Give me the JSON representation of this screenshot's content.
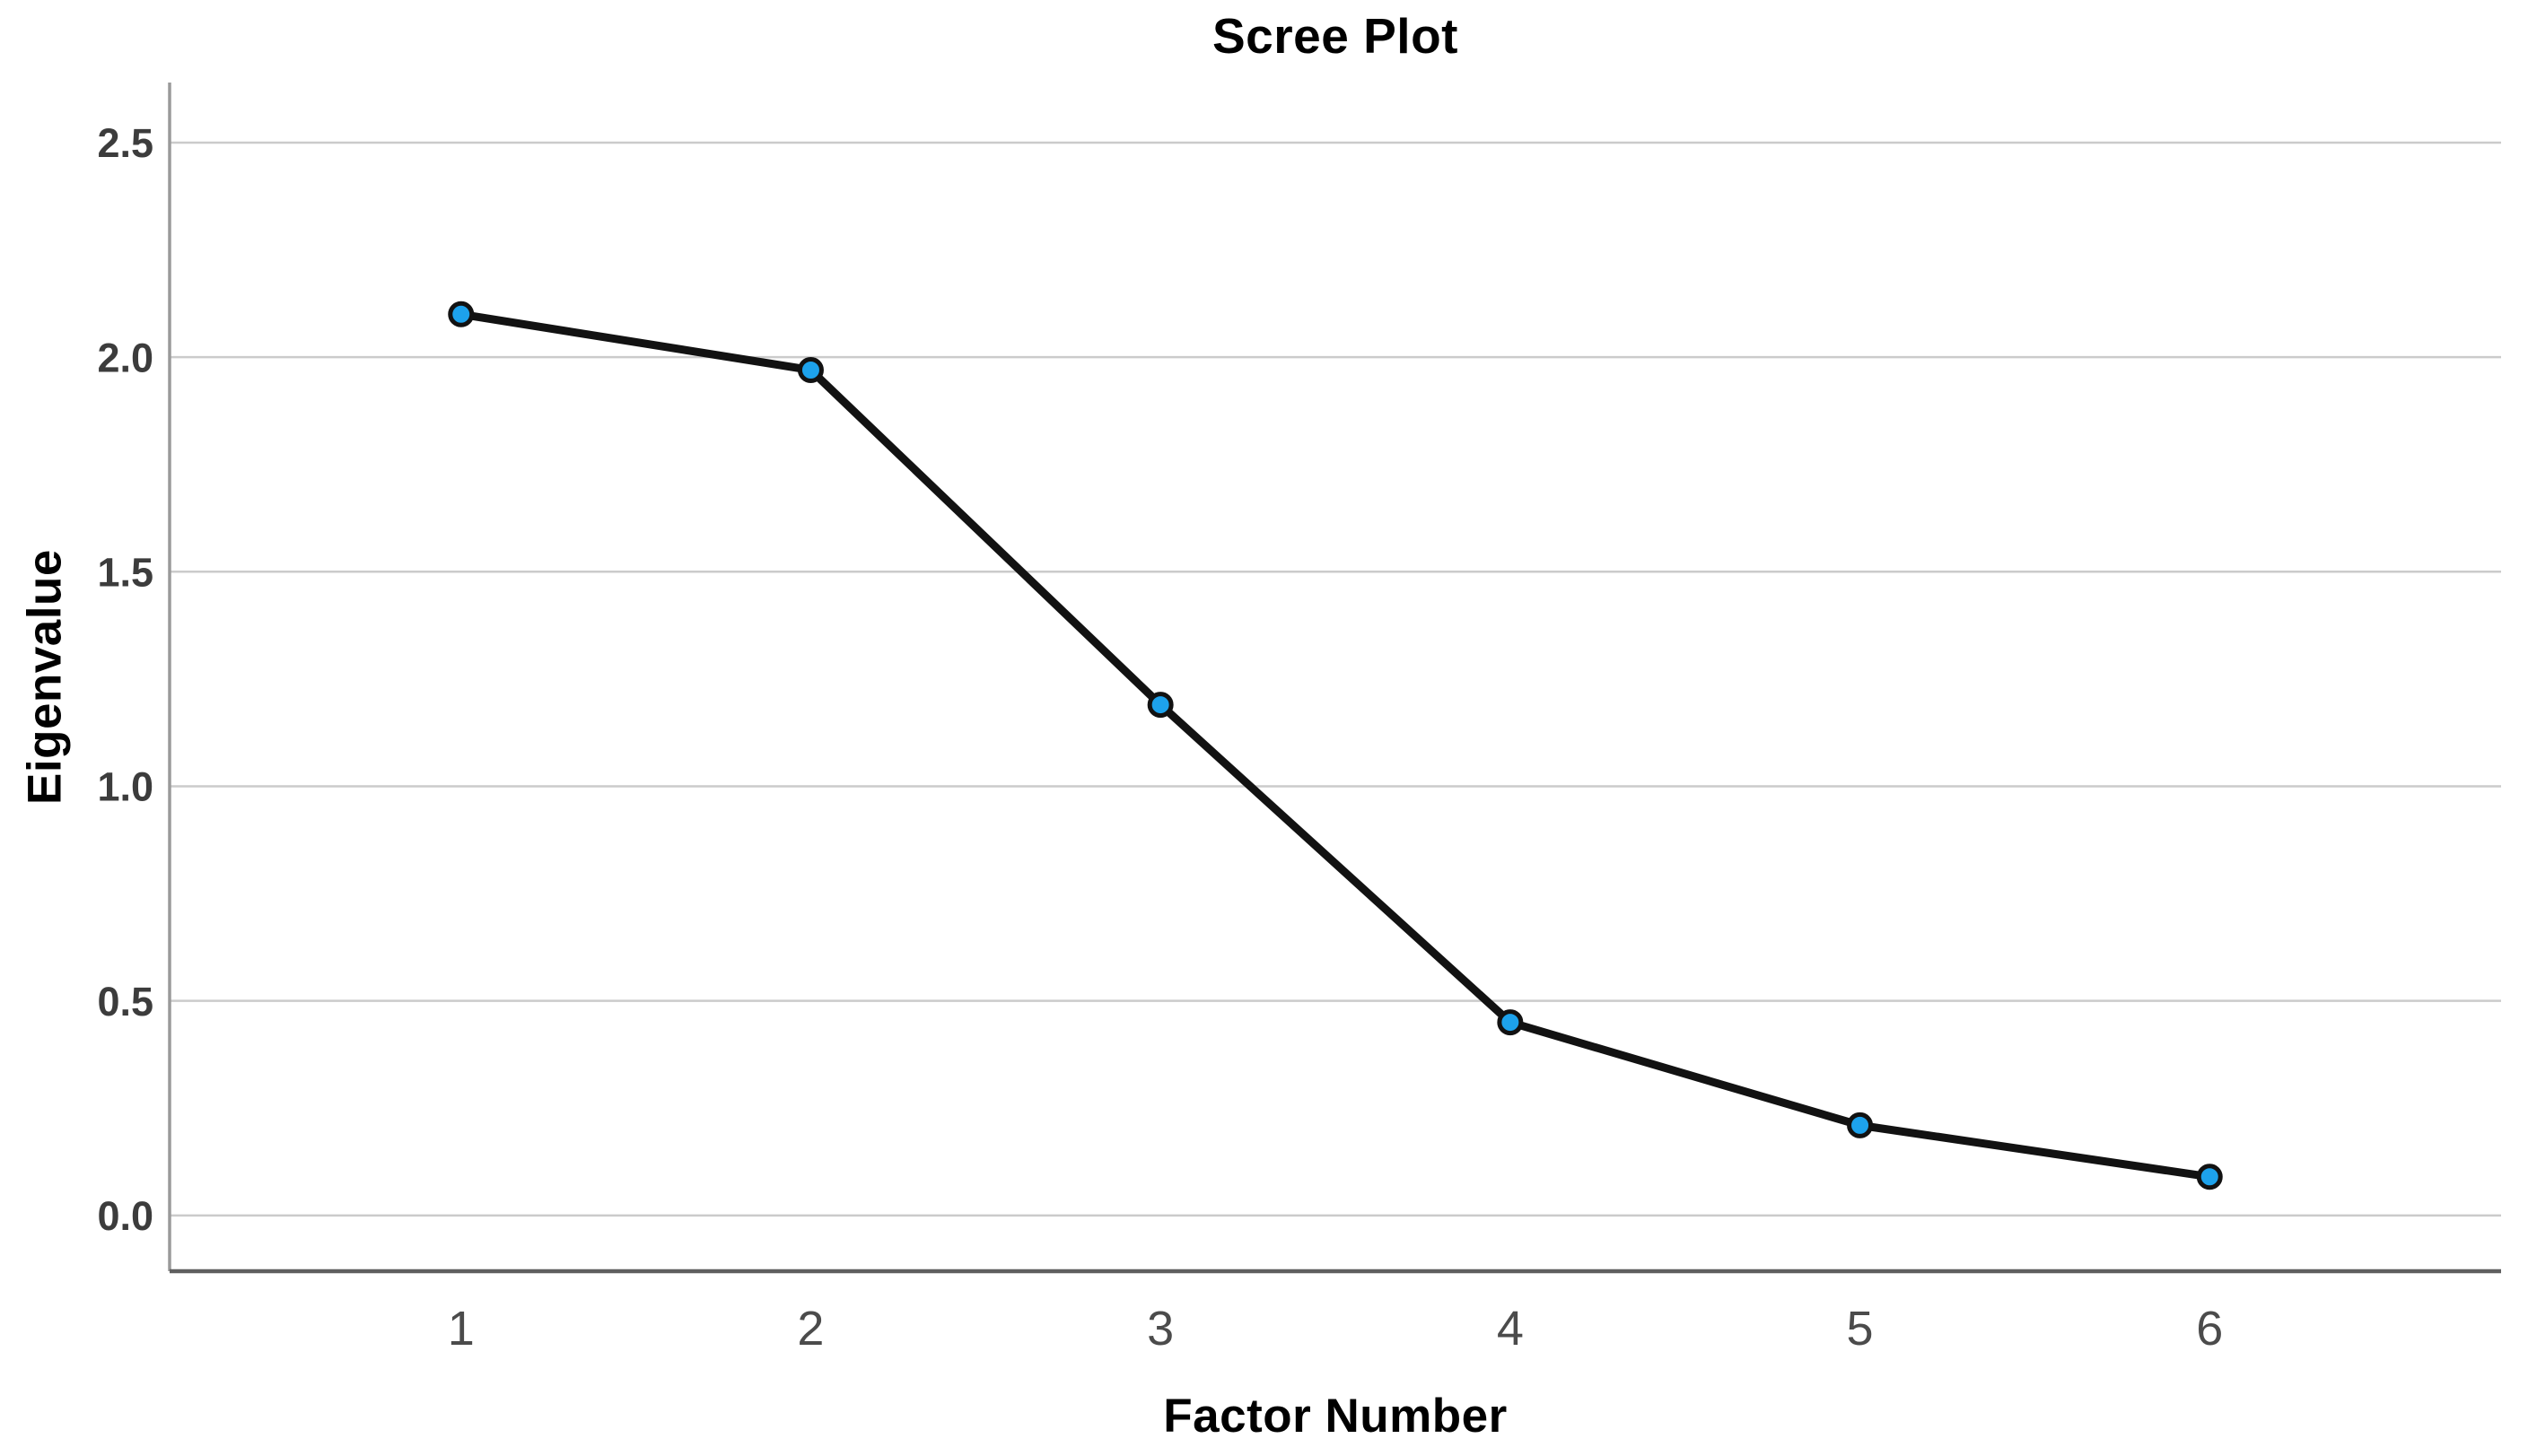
{
  "figure": {
    "background": "#ffffff"
  },
  "chart_data": {
    "type": "line",
    "title": "Scree Plot",
    "xlabel": "Factor Number",
    "ylabel": "Eigenvalue",
    "categories": [
      "1",
      "2",
      "3",
      "4",
      "5",
      "6"
    ],
    "x": [
      1,
      2,
      3,
      4,
      5,
      6
    ],
    "values": [
      2.1,
      1.97,
      1.19,
      0.45,
      0.21,
      0.09
    ],
    "series": [
      {
        "name": "Eigenvalue",
        "values": [
          2.1,
          1.97,
          1.19,
          0.45,
          0.21,
          0.09
        ]
      }
    ],
    "y_tick_labels": [
      "0.0",
      "0.5",
      "1.0",
      "1.5",
      "2.0",
      "2.5"
    ],
    "y_tick_values": [
      0.0,
      0.5,
      1.0,
      1.5,
      2.0,
      2.5
    ],
    "ylim": [
      -0.13,
      2.64
    ],
    "xlim_padding_note": "points inset ~12.5% from each side of plot area",
    "grid": "horizontal gridlines at each y tick, on",
    "legend": "none",
    "marker": "circle",
    "colors": {
      "marker_fill": "#1da2ec",
      "marker_stroke": "#121212",
      "line": "#121212",
      "gridline": "#cbcbcb",
      "y_axis_line": "#9a9a9a",
      "x_axis_line": "#5f5f5f",
      "y_tick_label": "#3c3c3c",
      "x_tick_label": "#4b4b4b",
      "title_text": "#000000"
    }
  }
}
